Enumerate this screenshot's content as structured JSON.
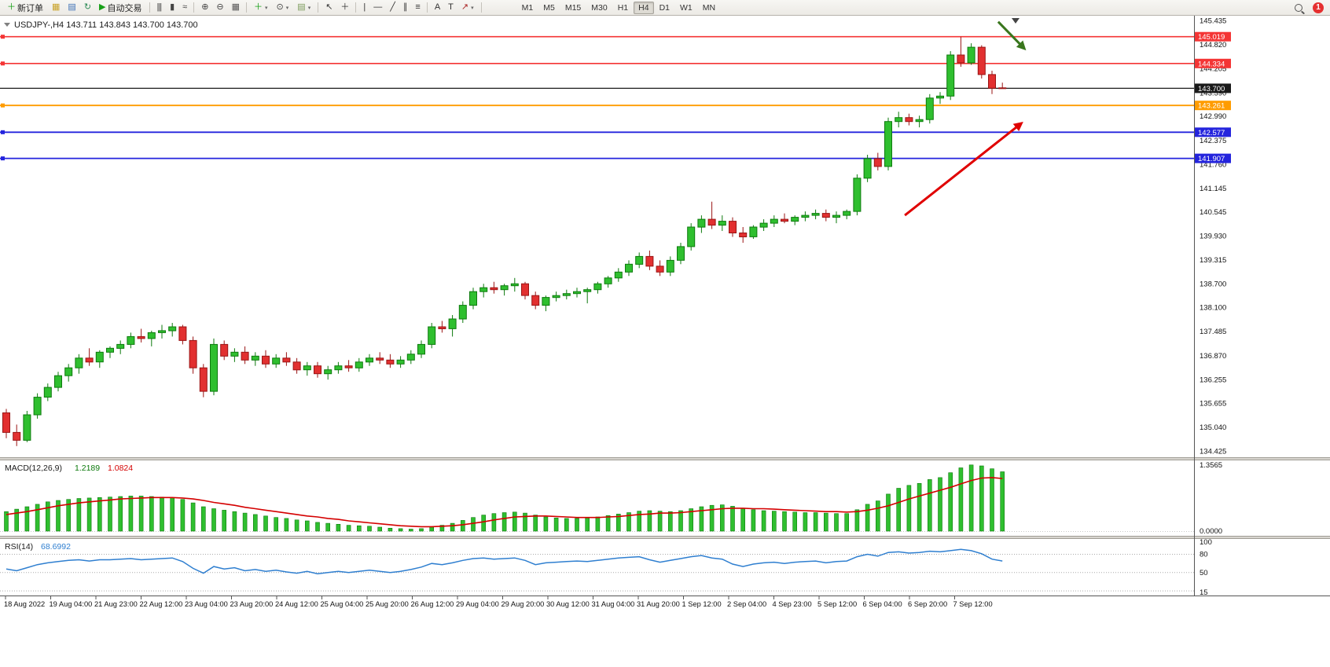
{
  "toolbar": {
    "items": [
      {
        "name": "new-order-button",
        "icon": "new-order-icon",
        "glyph": "＋",
        "glyph_color": "#18a018",
        "label": "新订单"
      },
      {
        "name": "metaeditor-button",
        "icon": "editor-icon",
        "glyph": "▦",
        "glyph_color": "#c9a227"
      },
      {
        "name": "charts-button",
        "icon": "chart-window-icon",
        "glyph": "▤",
        "glyph_color": "#3b6fb6"
      },
      {
        "name": "refresh-button",
        "icon": "refresh-icon",
        "glyph": "↻",
        "glyph_color": "#2e8b57"
      },
      {
        "name": "auto-trading-button",
        "icon": "auto-trading-play-icon",
        "glyph": "▶",
        "glyph_color": "#18a018",
        "label": "自动交易"
      },
      {
        "sep": true
      },
      {
        "name": "bar-chart-mode-button",
        "icon": "ohlc-bars-icon",
        "glyph": "|||",
        "glyph_color": "#444444"
      },
      {
        "name": "candlestick-mode-button",
        "icon": "candlestick-icon",
        "glyph": "▮",
        "glyph_color": "#444444"
      },
      {
        "name": "line-chart-mode-button",
        "icon": "line-chart-icon",
        "glyph": "≈",
        "glyph_color": "#444444"
      },
      {
        "sep": true
      },
      {
        "name": "zoom-in-button",
        "icon": "zoom-in-icon",
        "glyph": "⊕",
        "glyph_color": "#444444"
      },
      {
        "name": "zoom-out-button",
        "icon": "zoom-out-icon",
        "glyph": "⊖",
        "glyph_color": "#444444"
      },
      {
        "name": "tile-windows-button",
        "icon": "tile-windows-icon",
        "glyph": "▦",
        "glyph_color": "#555555"
      },
      {
        "sep": true
      },
      {
        "name": "indicators-button",
        "icon": "indicators-plus-icon",
        "glyph": "＋",
        "glyph_color": "#18a018",
        "caret": true
      },
      {
        "name": "periods-button",
        "icon": "clock-icon",
        "glyph": "⊙",
        "glyph_color": "#444444",
        "caret": true
      },
      {
        "name": "templates-button",
        "icon": "template-icon",
        "glyph": "▤",
        "glyph_color": "#7a9a5a",
        "caret": true
      },
      {
        "sep": true
      },
      {
        "name": "cursor-button",
        "icon": "cursor-icon",
        "glyph": "↖",
        "glyph_color": "#333333"
      },
      {
        "name": "crosshair-button",
        "icon": "crosshair-icon",
        "glyph": "＋",
        "glyph_color": "#333333"
      },
      {
        "sep": true
      },
      {
        "name": "vertical-line-button",
        "icon": "vertical-line-icon",
        "glyph": "|",
        "glyph_color": "#333333"
      },
      {
        "name": "horizontal-line-button",
        "icon": "horizontal-line-icon",
        "glyph": "—",
        "glyph_color": "#333333"
      },
      {
        "name": "trendline-button",
        "icon": "trendline-icon",
        "glyph": "╱",
        "glyph_color": "#333333"
      },
      {
        "name": "channel-button",
        "icon": "channel-icon",
        "glyph": "∥",
        "glyph_color": "#333333"
      },
      {
        "name": "fibonacci-button",
        "icon": "fibonacci-icon",
        "glyph": "≡",
        "glyph_color": "#333333"
      },
      {
        "sep": true
      },
      {
        "name": "text-button",
        "icon": "text-icon",
        "glyph": "A",
        "glyph_color": "#333333"
      },
      {
        "name": "text-label-button",
        "icon": "text-label-icon",
        "glyph": "T",
        "glyph_color": "#333333"
      },
      {
        "name": "arrows-button",
        "icon": "arrow-object-icon",
        "glyph": "↗",
        "glyph_color": "#aa2222",
        "caret": true
      },
      {
        "sep": true
      }
    ],
    "timeframes": [
      "M1",
      "M5",
      "M15",
      "M30",
      "H1",
      "H4",
      "D1",
      "W1",
      "MN"
    ],
    "active_timeframe": "H4",
    "notification_count": "1"
  },
  "chart_header": {
    "symbol_title": "USDJPY-,H4",
    "ohlc_text": "143.711 143.843 143.700 143.700"
  },
  "chart_data": {
    "type": "candlestick",
    "symbol": "USDJPY",
    "timeframe": "H4",
    "price_range": [
      134.425,
      145.435
    ],
    "style": {
      "bull": "#2fbf2f",
      "bull_border": "#0d7a0d",
      "bear": "#e23030",
      "bear_border": "#9a1414",
      "macd_bar": "#2fbf2f",
      "macd_bar_border": "#0d7a0d",
      "macd_signal": "#d40000",
      "rsi_line": "#2f7fd0"
    },
    "candles": [
      [
        135.4,
        135.5,
        134.75,
        134.9
      ],
      [
        134.9,
        135.1,
        134.55,
        134.7
      ],
      [
        134.7,
        135.45,
        134.65,
        135.35
      ],
      [
        135.35,
        135.9,
        135.25,
        135.8
      ],
      [
        135.8,
        136.15,
        135.7,
        136.05
      ],
      [
        136.05,
        136.45,
        135.95,
        136.35
      ],
      [
        136.35,
        136.65,
        136.2,
        136.55
      ],
      [
        136.55,
        136.9,
        136.4,
        136.8
      ],
      [
        136.8,
        137.05,
        136.6,
        136.7
      ],
      [
        136.7,
        137.0,
        136.55,
        136.95
      ],
      [
        136.95,
        137.1,
        136.8,
        137.05
      ],
      [
        137.05,
        137.25,
        136.9,
        137.15
      ],
      [
        137.15,
        137.45,
        137.05,
        137.35
      ],
      [
        137.35,
        137.55,
        137.2,
        137.3
      ],
      [
        137.3,
        137.5,
        137.1,
        137.45
      ],
      [
        137.45,
        137.65,
        137.3,
        137.5
      ],
      [
        137.5,
        137.7,
        137.35,
        137.6
      ],
      [
        137.6,
        137.65,
        137.15,
        137.25
      ],
      [
        137.25,
        137.35,
        136.4,
        136.55
      ],
      [
        136.55,
        136.65,
        135.8,
        135.95
      ],
      [
        135.95,
        137.3,
        135.85,
        137.15
      ],
      [
        137.15,
        137.25,
        136.75,
        136.85
      ],
      [
        136.85,
        137.05,
        136.7,
        136.95
      ],
      [
        136.95,
        137.1,
        136.65,
        136.75
      ],
      [
        136.75,
        136.95,
        136.6,
        136.85
      ],
      [
        136.85,
        137.0,
        136.55,
        136.65
      ],
      [
        136.65,
        136.9,
        136.55,
        136.8
      ],
      [
        136.8,
        136.95,
        136.6,
        136.7
      ],
      [
        136.7,
        136.8,
        136.4,
        136.5
      ],
      [
        136.5,
        136.7,
        136.35,
        136.6
      ],
      [
        136.6,
        136.7,
        136.3,
        136.4
      ],
      [
        136.4,
        136.6,
        136.25,
        136.5
      ],
      [
        136.5,
        136.7,
        136.4,
        136.6
      ],
      [
        136.6,
        136.75,
        136.45,
        136.55
      ],
      [
        136.55,
        136.8,
        136.45,
        136.7
      ],
      [
        136.7,
        136.9,
        136.6,
        136.8
      ],
      [
        136.8,
        136.95,
        136.65,
        136.75
      ],
      [
        136.75,
        136.9,
        136.55,
        136.65
      ],
      [
        136.65,
        136.85,
        136.55,
        136.75
      ],
      [
        136.75,
        137.0,
        136.65,
        136.9
      ],
      [
        136.9,
        137.25,
        136.8,
        137.15
      ],
      [
        137.15,
        137.7,
        137.05,
        137.6
      ],
      [
        137.6,
        137.75,
        137.45,
        137.55
      ],
      [
        137.55,
        137.9,
        137.35,
        137.8
      ],
      [
        137.8,
        138.25,
        137.7,
        138.15
      ],
      [
        138.15,
        138.6,
        138.05,
        138.5
      ],
      [
        138.5,
        138.7,
        138.35,
        138.6
      ],
      [
        138.6,
        138.75,
        138.45,
        138.55
      ],
      [
        138.55,
        138.7,
        138.4,
        138.65
      ],
      [
        138.65,
        138.85,
        138.5,
        138.7
      ],
      [
        138.7,
        138.75,
        138.3,
        138.4
      ],
      [
        138.4,
        138.5,
        138.05,
        138.15
      ],
      [
        138.15,
        138.4,
        138.0,
        138.35
      ],
      [
        138.35,
        138.5,
        138.25,
        138.4
      ],
      [
        138.4,
        138.55,
        138.3,
        138.45
      ],
      [
        138.45,
        138.6,
        138.35,
        138.5
      ],
      [
        138.5,
        138.6,
        138.2,
        138.55
      ],
      [
        138.55,
        138.75,
        138.45,
        138.7
      ],
      [
        138.7,
        138.9,
        138.6,
        138.85
      ],
      [
        138.85,
        139.1,
        138.75,
        139.0
      ],
      [
        139.0,
        139.3,
        138.9,
        139.2
      ],
      [
        139.2,
        139.5,
        139.1,
        139.4
      ],
      [
        139.4,
        139.55,
        139.05,
        139.15
      ],
      [
        139.15,
        139.3,
        138.9,
        139.0
      ],
      [
        139.0,
        139.4,
        138.9,
        139.3
      ],
      [
        139.3,
        139.75,
        139.2,
        139.65
      ],
      [
        139.65,
        140.25,
        139.55,
        140.15
      ],
      [
        140.15,
        140.45,
        140.0,
        140.35
      ],
      [
        140.35,
        140.8,
        140.1,
        140.2
      ],
      [
        140.2,
        140.45,
        140.05,
        140.3
      ],
      [
        140.3,
        140.4,
        139.9,
        140.0
      ],
      [
        140.0,
        140.15,
        139.75,
        139.9
      ],
      [
        139.9,
        140.2,
        139.85,
        140.15
      ],
      [
        140.15,
        140.35,
        140.05,
        140.25
      ],
      [
        140.25,
        140.45,
        140.15,
        140.35
      ],
      [
        140.35,
        140.5,
        140.25,
        140.3
      ],
      [
        140.3,
        140.45,
        140.2,
        140.4
      ],
      [
        140.4,
        140.55,
        140.3,
        140.45
      ],
      [
        140.45,
        140.6,
        140.35,
        140.5
      ],
      [
        140.5,
        140.6,
        140.3,
        140.4
      ],
      [
        140.4,
        140.55,
        140.25,
        140.45
      ],
      [
        140.45,
        140.6,
        140.35,
        140.55
      ],
      [
        140.55,
        141.5,
        140.45,
        141.4
      ],
      [
        141.4,
        142.0,
        141.3,
        141.9
      ],
      [
        141.9,
        142.05,
        141.6,
        141.7
      ],
      [
        141.7,
        142.95,
        141.6,
        142.85
      ],
      [
        142.85,
        143.1,
        142.7,
        142.95
      ],
      [
        142.95,
        143.05,
        142.75,
        142.85
      ],
      [
        142.85,
        143.0,
        142.7,
        142.9
      ],
      [
        142.9,
        143.55,
        142.8,
        143.45
      ],
      [
        143.45,
        143.6,
        143.3,
        143.5
      ],
      [
        143.5,
        144.65,
        143.4,
        144.55
      ],
      [
        144.55,
        145.02,
        144.25,
        144.35
      ],
      [
        144.35,
        144.85,
        144.3,
        144.75
      ],
      [
        144.75,
        144.8,
        143.95,
        144.05
      ],
      [
        144.05,
        144.15,
        143.55,
        143.7
      ],
      [
        143.711,
        143.843,
        143.7,
        143.7
      ]
    ],
    "hlines": [
      {
        "price": 145.019,
        "label": "145.019",
        "color": "#f43535",
        "width": 1.6
      },
      {
        "price": 144.334,
        "label": "144.334",
        "color": "#f43535",
        "width": 1.6
      },
      {
        "price": 143.7,
        "label": "143.700",
        "color": "#1a1a1a",
        "width": 1.2,
        "bid": true
      },
      {
        "price": 143.261,
        "label": "143.261",
        "color": "#ff9c00",
        "width": 1.8
      },
      {
        "price": 142.577,
        "label": "142.577",
        "color": "#2424dd",
        "width": 1.8
      },
      {
        "price": 141.907,
        "label": "141.907",
        "color": "#2424dd",
        "width": 1.8
      }
    ],
    "arrows": [
      {
        "name": "bullish-trend-arrow",
        "color": "#e00000",
        "width": 3,
        "marker": "ah-red",
        "from": [
          86.6,
          140.45
        ],
        "to": [
          97.8,
          142.8
        ]
      },
      {
        "name": "bearish-reversal-arrow",
        "color": "#39761d",
        "width": 3,
        "marker": "ah-green",
        "from": [
          95.6,
          145.4
        ],
        "to": [
          98.1,
          144.72
        ]
      }
    ],
    "price_axis_labels": [
      "145.435",
      "144.820",
      "144.205",
      "143.590",
      "142.990",
      "142.375",
      "141.760",
      "141.145",
      "140.545",
      "139.930",
      "139.315",
      "138.700",
      "138.100",
      "137.485",
      "136.870",
      "136.255",
      "135.655",
      "135.040",
      "134.425"
    ],
    "time_labels": [
      "18 Aug 2022",
      "19 Aug 04:00",
      "21 Aug 23:00",
      "22 Aug 12:00",
      "23 Aug 04:00",
      "23 Aug 20:00",
      "24 Aug 12:00",
      "25 Aug 04:00",
      "25 Aug 20:00",
      "26 Aug 12:00",
      "29 Aug 04:00",
      "29 Aug 20:00",
      "30 Aug 12:00",
      "31 Aug 04:00",
      "31 Aug 20:00",
      "1 Sep 12:00",
      "2 Sep 04:00",
      "4 Sep 23:00",
      "5 Sep 12:00",
      "6 Sep 04:00",
      "6 Sep 20:00",
      "7 Sep 12:00"
    ],
    "macd": {
      "name": "MACD(12,26,9)",
      "value_main": "1.2189",
      "value_signal": "1.0824",
      "scale_max_value": 1.3565,
      "scale_max_label": "1.3565",
      "scale_min_label": "0.0000",
      "main": [
        0.4,
        0.45,
        0.5,
        0.55,
        0.6,
        0.63,
        0.65,
        0.67,
        0.68,
        0.69,
        0.7,
        0.71,
        0.72,
        0.72,
        0.71,
        0.7,
        0.69,
        0.65,
        0.58,
        0.5,
        0.46,
        0.43,
        0.4,
        0.37,
        0.34,
        0.31,
        0.28,
        0.26,
        0.23,
        0.21,
        0.18,
        0.16,
        0.14,
        0.12,
        0.11,
        0.1,
        0.08,
        0.06,
        0.05,
        0.04,
        0.05,
        0.09,
        0.12,
        0.16,
        0.22,
        0.28,
        0.33,
        0.36,
        0.38,
        0.39,
        0.37,
        0.33,
        0.29,
        0.27,
        0.26,
        0.26,
        0.27,
        0.29,
        0.32,
        0.35,
        0.38,
        0.41,
        0.42,
        0.41,
        0.4,
        0.42,
        0.46,
        0.5,
        0.53,
        0.54,
        0.51,
        0.47,
        0.44,
        0.42,
        0.41,
        0.4,
        0.39,
        0.38,
        0.38,
        0.37,
        0.36,
        0.36,
        0.44,
        0.55,
        0.62,
        0.76,
        0.88,
        0.94,
        0.98,
        1.06,
        1.1,
        1.2,
        1.3,
        1.36,
        1.34,
        1.28,
        1.22
      ],
      "signal": [
        0.34,
        0.37,
        0.4,
        0.44,
        0.48,
        0.52,
        0.55,
        0.58,
        0.6,
        0.62,
        0.64,
        0.66,
        0.67,
        0.68,
        0.69,
        0.69,
        0.69,
        0.68,
        0.66,
        0.63,
        0.59,
        0.56,
        0.53,
        0.49,
        0.46,
        0.43,
        0.4,
        0.37,
        0.34,
        0.31,
        0.29,
        0.26,
        0.24,
        0.21,
        0.19,
        0.17,
        0.15,
        0.13,
        0.11,
        0.1,
        0.09,
        0.09,
        0.1,
        0.11,
        0.13,
        0.16,
        0.19,
        0.23,
        0.26,
        0.29,
        0.3,
        0.31,
        0.31,
        0.3,
        0.29,
        0.28,
        0.28,
        0.28,
        0.29,
        0.3,
        0.32,
        0.34,
        0.35,
        0.37,
        0.37,
        0.38,
        0.4,
        0.42,
        0.44,
        0.46,
        0.47,
        0.47,
        0.46,
        0.46,
        0.45,
        0.44,
        0.43,
        0.42,
        0.41,
        0.4,
        0.4,
        0.39,
        0.4,
        0.43,
        0.47,
        0.52,
        0.59,
        0.66,
        0.72,
        0.78,
        0.84,
        0.9,
        0.97,
        1.04,
        1.09,
        1.1,
        1.08
      ]
    },
    "rsi": {
      "name": "RSI(14)",
      "value": "68.6992",
      "levels": [
        80,
        50,
        20
      ],
      "scale_labels": [
        100,
        80,
        50,
        15
      ],
      "range": [
        15,
        100
      ],
      "values": [
        56,
        53,
        58,
        63,
        66,
        68,
        70,
        71,
        69,
        71,
        71,
        72,
        73,
        71,
        72,
        73,
        74,
        68,
        57,
        49,
        60,
        56,
        58,
        53,
        55,
        52,
        54,
        51,
        49,
        52,
        48,
        50,
        52,
        50,
        52,
        54,
        52,
        50,
        52,
        55,
        59,
        65,
        63,
        66,
        70,
        73,
        74,
        72,
        73,
        74,
        70,
        63,
        66,
        67,
        68,
        69,
        68,
        70,
        72,
        74,
        75,
        76,
        71,
        67,
        70,
        73,
        76,
        78,
        74,
        72,
        64,
        60,
        64,
        66,
        67,
        65,
        67,
        68,
        69,
        66,
        68,
        69,
        76,
        80,
        77,
        83,
        84,
        82,
        83,
        85,
        84,
        86,
        88,
        86,
        81,
        72,
        69
      ]
    }
  }
}
